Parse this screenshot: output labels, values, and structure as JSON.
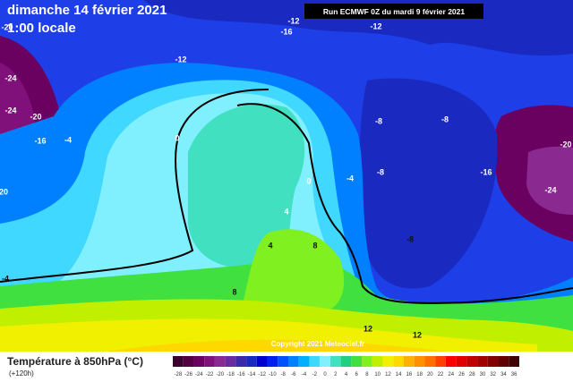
{
  "header": {
    "date": "dimanche 14 février 2021",
    "time": "1:00 locale",
    "run": "Run ECMWF 0Z du mardi 9 février 2021"
  },
  "map_labels": [
    "-12",
    "-16",
    "-12",
    "-20",
    "-12",
    "-24",
    "-24",
    "-20",
    "-16",
    "-4",
    "0",
    "-8",
    "-8",
    "-8",
    "-16",
    "-20",
    "-24",
    "20",
    "-4",
    "0",
    "4",
    "4",
    "-8",
    "8",
    "-4",
    "8",
    "12",
    "12"
  ],
  "copyright": "Copyright 2021 Meteociel.fr",
  "legend": {
    "title": "Température à 850hPa (°C)",
    "subtitle": "(+120h)",
    "labels": [
      -28,
      -26,
      -24,
      -22,
      -20,
      -18,
      -16,
      -14,
      -12,
      -10,
      -8,
      -6,
      -4,
      -2,
      0,
      2,
      4,
      6,
      8,
      10,
      12,
      14,
      16,
      18,
      20,
      22,
      24,
      26,
      28,
      30,
      32,
      34,
      36
    ],
    "colors": [
      "#3a0030",
      "#520040",
      "#6a0060",
      "#80107a",
      "#8a2a90",
      "#6a2aa0",
      "#3a2aa8",
      "#1a2ac0",
      "#0000d0",
      "#0020f0",
      "#0050ff",
      "#0080ff",
      "#00b0ff",
      "#40d8ff",
      "#80f0ff",
      "#40e0c0",
      "#20d080",
      "#40e040",
      "#80f020",
      "#c0f000",
      "#f0f000",
      "#ffd800",
      "#ffb000",
      "#ff9000",
      "#ff7000",
      "#ff4000",
      "#ff0000",
      "#e00000",
      "#c00000",
      "#a00000",
      "#800000",
      "#600000",
      "#400000"
    ]
  }
}
